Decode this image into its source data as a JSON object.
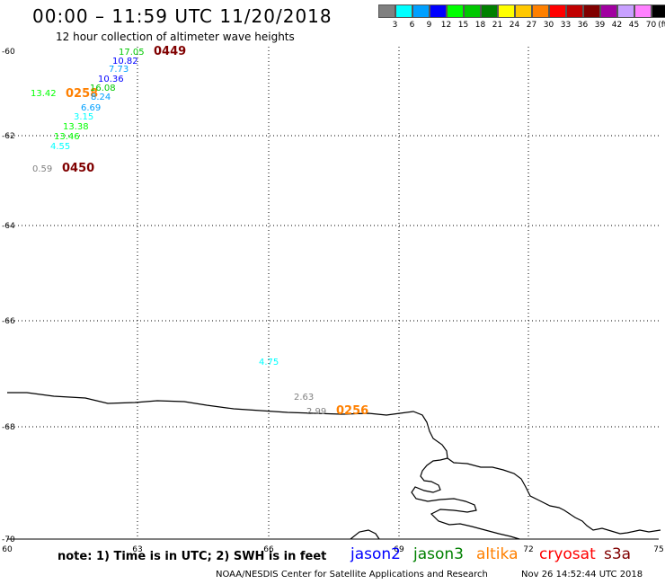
{
  "header": {
    "title": "00:00 – 11:59 UTC 11/20/2018",
    "subtitle": "12 hour collection of altimeter wave heights"
  },
  "color_scale": {
    "swatches": [
      {
        "label": "3",
        "color": "#808080"
      },
      {
        "label": "6",
        "color": "#00ffff"
      },
      {
        "label": "9",
        "color": "#00a0ff"
      },
      {
        "label": "12",
        "color": "#0000ff"
      },
      {
        "label": "15",
        "color": "#00ff00"
      },
      {
        "label": "18",
        "color": "#00c800"
      },
      {
        "label": "21",
        "color": "#008000"
      },
      {
        "label": "24",
        "color": "#ffff00"
      },
      {
        "label": "27",
        "color": "#ffc800"
      },
      {
        "label": "30",
        "color": "#ff8000"
      },
      {
        "label": "33",
        "color": "#ff0000"
      },
      {
        "label": "36",
        "color": "#c00000"
      },
      {
        "label": "39",
        "color": "#800000"
      },
      {
        "label": "42",
        "color": "#a000a0"
      },
      {
        "label": "45",
        "color": "#c8a0ff"
      },
      {
        "label": "70",
        "color": "#ff80ff"
      },
      {
        "label": "",
        "color": "#000000"
      }
    ],
    "unit": "(ft)"
  },
  "axes": {
    "lon_ticks": [
      "60",
      "63",
      "66",
      "69",
      "72",
      "75"
    ],
    "lat_ticks": [
      "-60",
      "-62",
      "-64",
      "-66",
      "-68",
      "-70"
    ]
  },
  "observations": [
    {
      "text": "17.05",
      "color": "#00c800"
    },
    {
      "text": "0449",
      "color": "#800000"
    },
    {
      "text": "10.82",
      "color": "#0000ff"
    },
    {
      "text": "7.73",
      "color": "#00a0ff"
    },
    {
      "text": "10.36",
      "color": "#0000ff"
    },
    {
      "text": "13.42",
      "color": "#00ff00"
    },
    {
      "text": "0258",
      "color": "#ff8000"
    },
    {
      "text": "16.08",
      "color": "#00c800"
    },
    {
      "text": "8.24",
      "color": "#00a0ff"
    },
    {
      "text": "6.69",
      "color": "#00a0ff"
    },
    {
      "text": "3.15",
      "color": "#00ffff"
    },
    {
      "text": "13.38",
      "color": "#00ff00"
    },
    {
      "text": "13.46",
      "color": "#00ff00"
    },
    {
      "text": "4.55",
      "color": "#00ffff"
    },
    {
      "text": "0.59",
      "color": "#808080"
    },
    {
      "text": "0450",
      "color": "#800000"
    },
    {
      "text": "4.75",
      "color": "#00ffff"
    },
    {
      "text": "2.63",
      "color": "#808080"
    },
    {
      "text": "2.99",
      "color": "#808080"
    },
    {
      "text": "0256",
      "color": "#ff8000"
    }
  ],
  "footer": {
    "note": "note: 1) Time is in UTC; 2) SWH is in feet",
    "satellites": [
      {
        "name": "jason2",
        "color": "#0000ff"
      },
      {
        "name": "jason3",
        "color": "#008000"
      },
      {
        "name": "altika",
        "color": "#ff8000"
      },
      {
        "name": "cryosat",
        "color": "#ff0000"
      },
      {
        "name": "s3a",
        "color": "#800000"
      }
    ],
    "credit": "NOAA/NESDIS Center for Satellite Applications and Research",
    "timestamp": "Nov 26 14:52:44 UTC 2018"
  }
}
